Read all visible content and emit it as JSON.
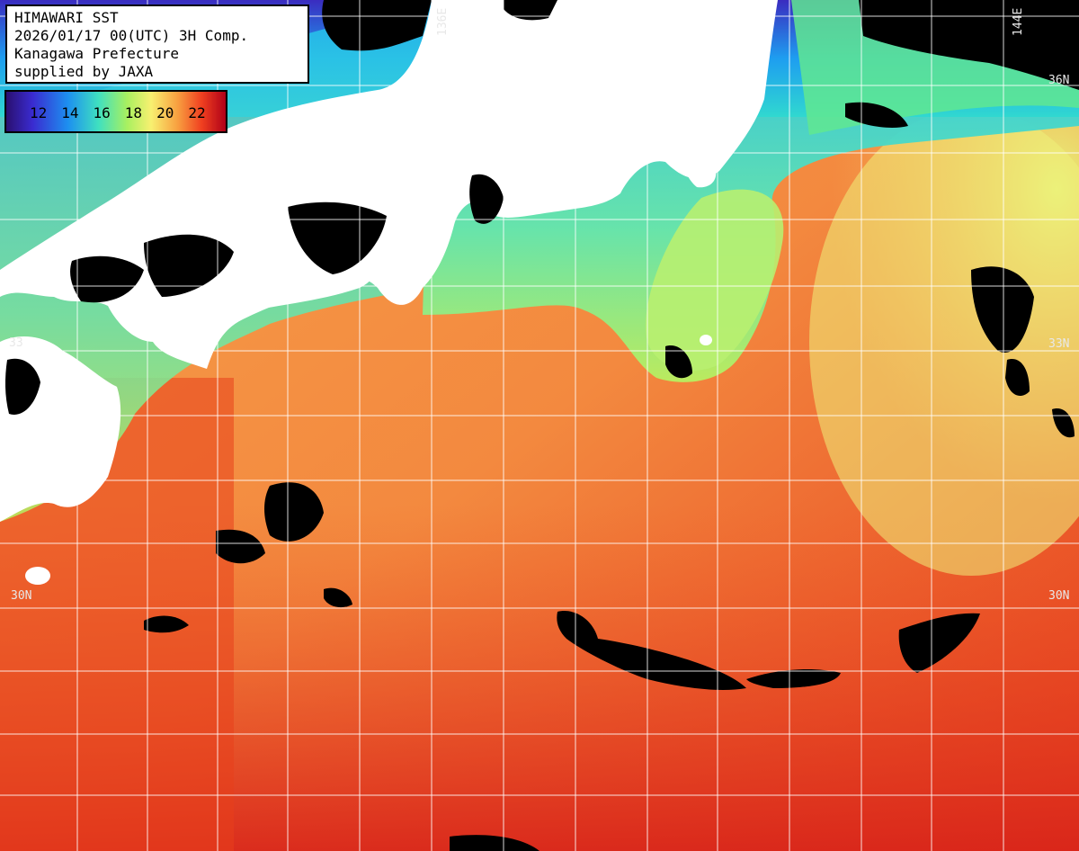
{
  "info": {
    "line1": "HIMAWARI SST",
    "line2": "2026/01/17 00(UTC) 3H Comp.",
    "line3": "Kanagawa Prefecture",
    "line4": "supplied by JAXA"
  },
  "legend": {
    "ticks": [
      "12",
      "14",
      "16",
      "18",
      "20",
      "22"
    ]
  },
  "grid_labels": {
    "lon_136": "136E",
    "lon_144": "144E",
    "lat_36": "36N",
    "lat_33": "33N",
    "lat_30_left": "30N",
    "lat_30_right": "30N",
    "left_33": "33"
  },
  "colors": {
    "land": "#ffffff",
    "cloud": "#000000",
    "sea_warm": "#f05a28",
    "sea_mid": "#f89a48",
    "sea_cool": "#a8f060",
    "sea_cold": "#20a0f0"
  }
}
